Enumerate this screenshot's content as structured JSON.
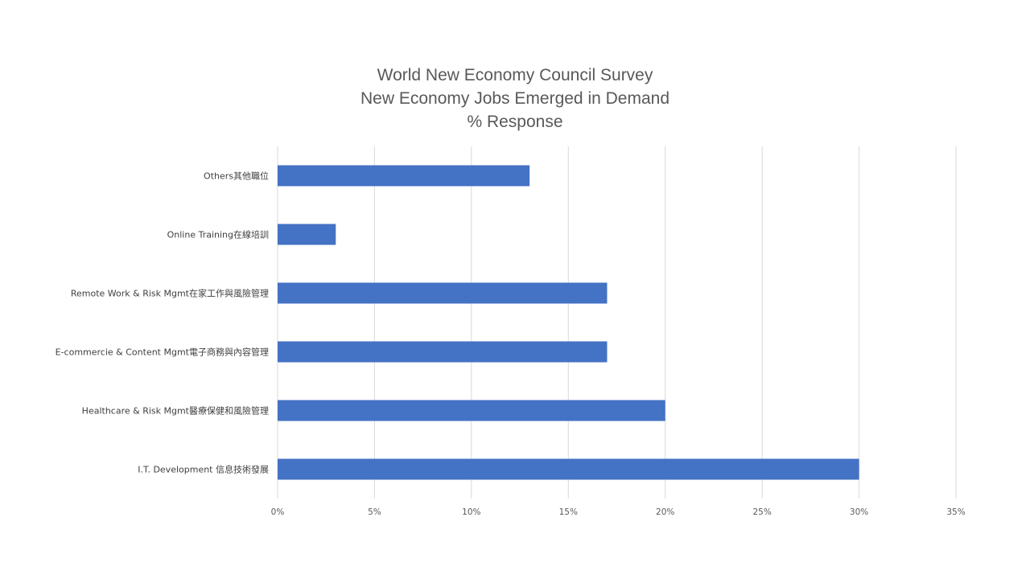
{
  "chart_data": {
    "type": "bar",
    "orientation": "horizontal",
    "title": [
      "World New Economy Council Survey",
      "New Economy Jobs Emerged in Demand",
      "% Response"
    ],
    "categories": [
      "Others其他職位",
      "Online Training在線培訓",
      "Remote Work & Risk Mgmt在家工作與風險管理",
      "E-commercie & Content Mgmt電子商務與內容管理",
      "Healthcare & Risk Mgmt醫療保健和風險管理",
      "I.T. Development 信息技術發展"
    ],
    "values": [
      13,
      3,
      17,
      17,
      20,
      30
    ],
    "xlim": [
      0,
      35
    ],
    "xticks": [
      "0%",
      "5%",
      "10%",
      "15%",
      "20%",
      "25%",
      "30%",
      "35%"
    ],
    "xlabel": "",
    "ylabel": "",
    "grid": true,
    "legend": "none",
    "bar_color": "#4472c4"
  }
}
